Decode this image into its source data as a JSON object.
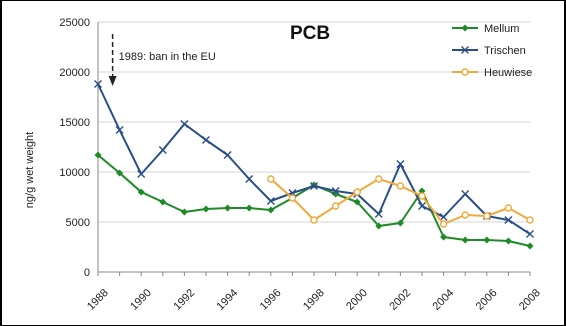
{
  "chart_data": {
    "type": "line",
    "title": "PCB",
    "ylabel": "ng/g wet weight",
    "xlabel": "",
    "ylim": [
      0,
      25000
    ],
    "xlim": [
      1988,
      2008
    ],
    "yticks": [
      0,
      5000,
      10000,
      15000,
      20000,
      25000
    ],
    "xticks": [
      1988,
      1990,
      1992,
      1994,
      1996,
      1998,
      2000,
      2002,
      2004,
      2006,
      2008
    ],
    "legend_position": "top-right",
    "annotation": {
      "text": "1989: ban in the EU",
      "x": 1989
    },
    "series": [
      {
        "name": "Mellum",
        "color": "#1e8a28",
        "marker": "diamond",
        "x": [
          1988,
          1989,
          1990,
          1991,
          1992,
          1993,
          1994,
          1995,
          1996,
          1997,
          1998,
          1999,
          2000,
          2001,
          2002,
          2003,
          2004,
          2005,
          2006,
          2007,
          2008
        ],
        "y": [
          11700,
          9900,
          8000,
          7000,
          6000,
          6300,
          6400,
          6400,
          6200,
          7400,
          8700,
          7800,
          7000,
          4600,
          4900,
          8100,
          3500,
          3200,
          3200,
          3100,
          2600
        ]
      },
      {
        "name": "Trischen",
        "color": "#2a4f86",
        "marker": "x",
        "x": [
          1988,
          1989,
          1990,
          1991,
          1992,
          1993,
          1994,
          1995,
          1996,
          1997,
          1998,
          1999,
          2000,
          2001,
          2002,
          2003,
          2004,
          2005,
          2006,
          2007,
          2008
        ],
        "y": [
          18800,
          14200,
          9800,
          12200,
          14800,
          13200,
          11700,
          9300,
          7100,
          7900,
          8600,
          8100,
          7800,
          5800,
          10800,
          6600,
          5500,
          7800,
          5600,
          5200,
          3800
        ]
      },
      {
        "name": "Heuwiese",
        "color": "#f2a93b",
        "marker": "circle",
        "x": [
          1996,
          1997,
          1998,
          1999,
          2000,
          2001,
          2002,
          2003,
          2004,
          2005,
          2006,
          2007,
          2008
        ],
        "y": [
          9300,
          7400,
          5200,
          6600,
          8000,
          9300,
          8600,
          7600,
          4800,
          5700,
          5600,
          6400,
          5200
        ]
      }
    ]
  }
}
